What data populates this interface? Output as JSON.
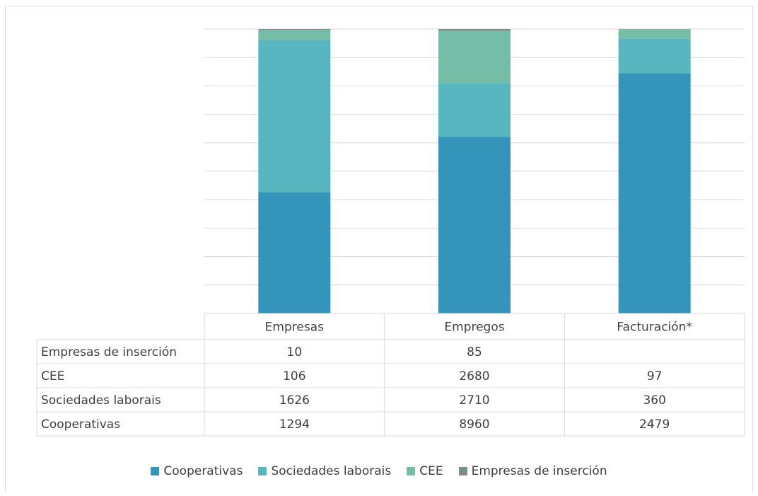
{
  "chart_data": {
    "type": "bar",
    "stacked": "percent",
    "categories": [
      "Empresas",
      "Empregos",
      "Facturación*"
    ],
    "series": [
      {
        "name": "Cooperativas",
        "values": [
          1294,
          8960,
          2479
        ],
        "color": "#3494BA"
      },
      {
        "name": "Sociedades laborais",
        "values": [
          1626,
          2710,
          360
        ],
        "color": "#58B6C0"
      },
      {
        "name": "CEE",
        "values": [
          106,
          2680,
          97
        ],
        "color": "#75BDA7"
      },
      {
        "name": "Empresas de inserción",
        "values": [
          10,
          85,
          null
        ],
        "color": "#7A8C8E"
      }
    ],
    "data_table_rows": [
      {
        "label": "Empresas de inserción",
        "values": [
          "10",
          "85",
          ""
        ]
      },
      {
        "label": "CEE",
        "values": [
          "106",
          "2680",
          "97"
        ]
      },
      {
        "label": "Sociedades laborais",
        "values": [
          "1626",
          "2710",
          "360"
        ]
      },
      {
        "label": "Cooperativas",
        "values": [
          "1294",
          "8960",
          "2479"
        ]
      }
    ],
    "grid": true,
    "legend_position": "bottom"
  }
}
